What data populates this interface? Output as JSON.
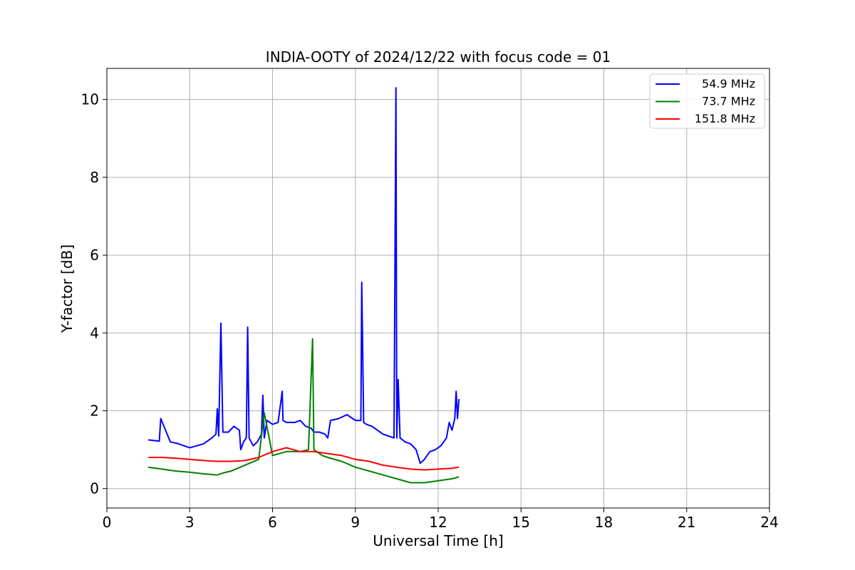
{
  "chart_data": {
    "type": "line",
    "title": "INDIA-OOTY of 2024/12/22 with focus code = 01",
    "xlabel": "Universal Time [h]",
    "ylabel": "Y-factor [dB]",
    "xlim": [
      0,
      24
    ],
    "ylim": [
      -0.5,
      10.8
    ],
    "xticks": [
      0,
      3,
      6,
      9,
      12,
      15,
      18,
      21,
      24
    ],
    "yticks": [
      0,
      2,
      4,
      6,
      8,
      10
    ],
    "grid": true,
    "legend_position": "top-right",
    "series": [
      {
        "name": " 54.9 MHz",
        "color": "#0000ff",
        "x": [
          1.5,
          1.9,
          1.95,
          2.3,
          2.6,
          3.0,
          3.5,
          3.8,
          3.95,
          4.0,
          4.05,
          4.13,
          4.2,
          4.4,
          4.6,
          4.8,
          4.85,
          4.95,
          5.05,
          5.1,
          5.15,
          5.3,
          5.45,
          5.6,
          5.65,
          5.7,
          5.8,
          6.0,
          6.2,
          6.35,
          6.38,
          6.5,
          6.8,
          7.0,
          7.2,
          7.4,
          7.5,
          7.7,
          7.9,
          8.0,
          8.1,
          8.4,
          8.7,
          9.0,
          9.2,
          9.23,
          9.3,
          9.4,
          9.6,
          9.8,
          10.0,
          10.2,
          10.4,
          10.47,
          10.5,
          10.55,
          10.62,
          10.8,
          11.0,
          11.2,
          11.35,
          11.5,
          11.7,
          11.9,
          12.1,
          12.3,
          12.4,
          12.5,
          12.6,
          12.65,
          12.7,
          12.75
        ],
        "y": [
          1.25,
          1.22,
          1.8,
          1.2,
          1.15,
          1.05,
          1.15,
          1.3,
          1.4,
          2.05,
          1.35,
          4.25,
          1.45,
          1.45,
          1.6,
          1.5,
          1.0,
          1.2,
          1.3,
          4.15,
          1.3,
          1.1,
          1.2,
          1.4,
          2.4,
          1.3,
          1.75,
          1.65,
          1.7,
          2.5,
          1.75,
          1.7,
          1.7,
          1.75,
          1.6,
          1.55,
          1.45,
          1.45,
          1.4,
          1.3,
          1.75,
          1.8,
          1.9,
          1.75,
          1.75,
          5.3,
          1.7,
          1.65,
          1.6,
          1.5,
          1.4,
          1.35,
          1.3,
          10.3,
          1.3,
          2.8,
          1.3,
          1.2,
          1.15,
          1.0,
          0.65,
          0.75,
          0.95,
          1.0,
          1.1,
          1.3,
          1.7,
          1.5,
          1.8,
          2.5,
          1.8,
          2.3
        ]
      },
      {
        "name": " 73.7 MHz",
        "color": "#008000",
        "x": [
          1.5,
          2.0,
          2.5,
          3.0,
          3.5,
          4.0,
          4.2,
          4.5,
          5.0,
          5.5,
          5.7,
          6.0,
          6.5,
          7.0,
          7.3,
          7.45,
          7.5,
          7.8,
          8.0,
          8.5,
          9.0,
          9.5,
          10.0,
          10.5,
          11.0,
          11.5,
          12.0,
          12.5,
          12.75
        ],
        "y": [
          0.55,
          0.5,
          0.45,
          0.42,
          0.38,
          0.35,
          0.4,
          0.45,
          0.6,
          0.75,
          1.95,
          0.85,
          0.95,
          0.95,
          1.0,
          3.85,
          1.0,
          0.85,
          0.8,
          0.7,
          0.55,
          0.45,
          0.35,
          0.25,
          0.15,
          0.15,
          0.2,
          0.25,
          0.3
        ]
      },
      {
        "name": "151.8 MHz",
        "color": "#ff0000",
        "x": [
          1.5,
          2.0,
          2.5,
          3.0,
          3.5,
          4.0,
          4.5,
          5.0,
          5.5,
          6.0,
          6.5,
          7.0,
          7.5,
          8.0,
          8.5,
          9.0,
          9.5,
          10.0,
          10.5,
          11.0,
          11.5,
          12.0,
          12.5,
          12.75
        ],
        "y": [
          0.8,
          0.8,
          0.78,
          0.75,
          0.72,
          0.7,
          0.7,
          0.72,
          0.8,
          0.95,
          1.05,
          0.95,
          0.95,
          0.9,
          0.85,
          0.75,
          0.7,
          0.6,
          0.55,
          0.5,
          0.48,
          0.5,
          0.52,
          0.55
        ]
      }
    ]
  }
}
